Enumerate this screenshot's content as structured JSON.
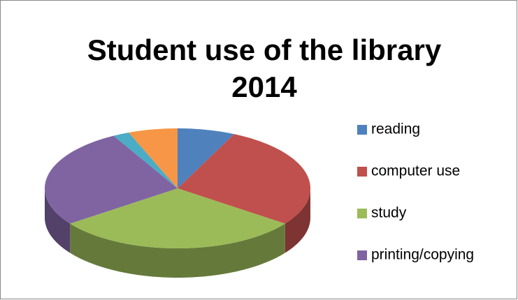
{
  "chart_data": {
    "type": "pie",
    "title": "Student use of the library",
    "subtitle": "2014",
    "categories": [
      "reading",
      "computer use",
      "study",
      "printing/copying",
      null,
      null
    ],
    "values": [
      7,
      28,
      30,
      27,
      2,
      6
    ],
    "colors": [
      "#4f81bd",
      "#c0504d",
      "#9bbb59",
      "#8064a2",
      "#4bacc6",
      "#f79646"
    ],
    "legend": "right"
  }
}
